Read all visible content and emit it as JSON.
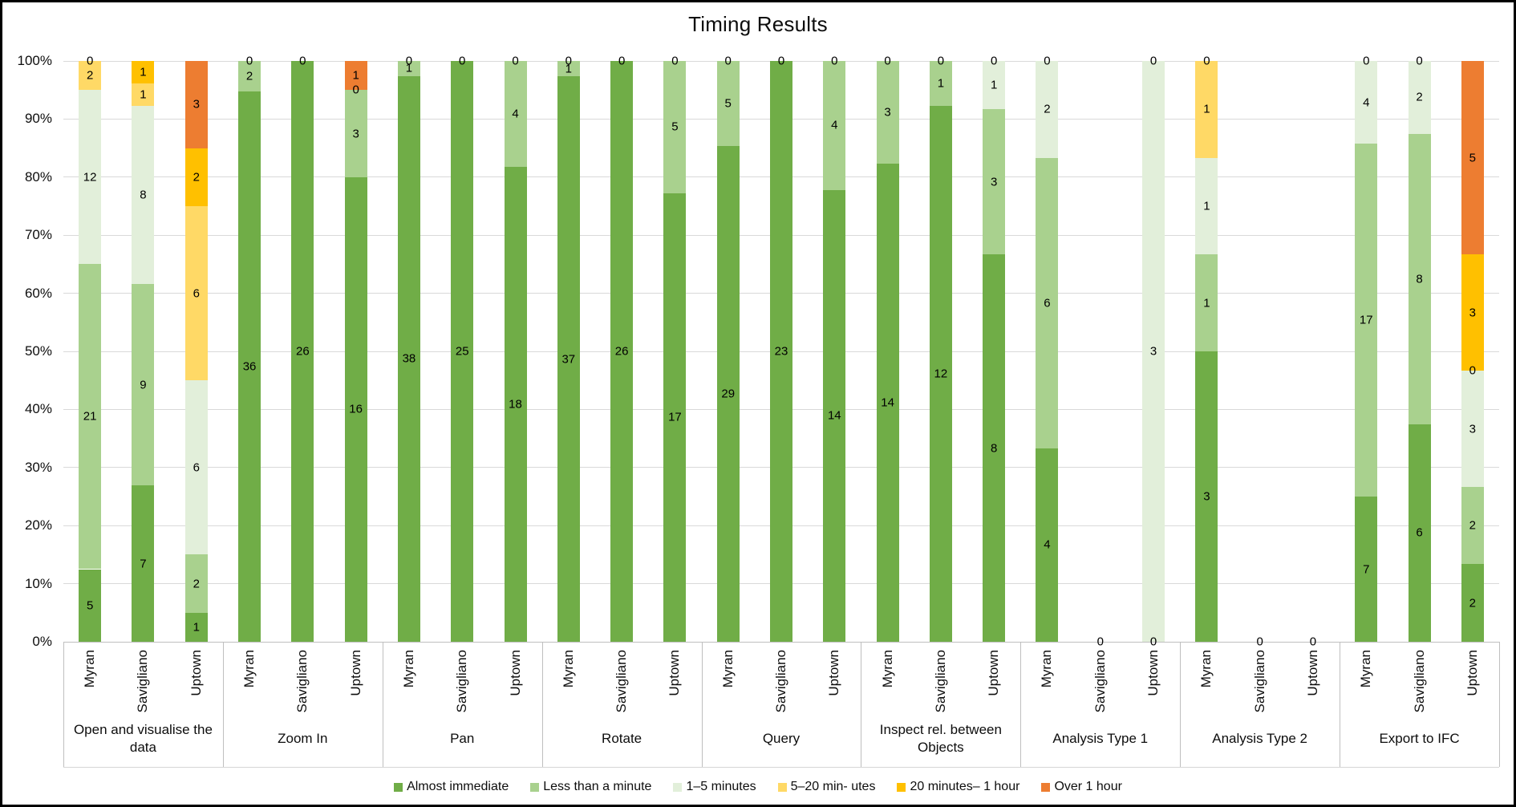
{
  "title": "Timing Results",
  "chart_data": {
    "type": "bar",
    "stacked": true,
    "percent_stacked": true,
    "title": "Timing Results",
    "xlabel": "",
    "ylabel": "",
    "ylim": [
      0,
      100
    ],
    "grid": true,
    "legend_position": "bottom",
    "y_ticks": [
      "0%",
      "10%",
      "20%",
      "30%",
      "40%",
      "50%",
      "60%",
      "70%",
      "80%",
      "90%",
      "100%"
    ],
    "series": [
      {
        "name": "Almost immediate",
        "color": "#70AD47"
      },
      {
        "name": "Less than a minute",
        "color": "#A9D18E"
      },
      {
        "name": "1–5 minutes",
        "color": "#E2EFDA"
      },
      {
        "name": "5–20 min- utes",
        "color": "#FFD966"
      },
      {
        "name": "20 minutes– 1 hour",
        "color": "#FFC000"
      },
      {
        "name": "Over 1 hour",
        "color": "#ED7D31"
      }
    ],
    "sub_categories": [
      "Myran",
      "Savigliano",
      "Uptown"
    ],
    "groups": [
      {
        "label": "Open and visualise the data",
        "bars": [
          {
            "label": "Myran",
            "values": [
              5,
              21,
              12,
              2,
              0,
              0
            ],
            "zero_labels_at_pct": [
              100
            ]
          },
          {
            "label": "Savigliano",
            "values": [
              7,
              9,
              8,
              1,
              1,
              0
            ],
            "zero_labels_at_pct": []
          },
          {
            "label": "Uptown",
            "values": [
              1,
              2,
              6,
              6,
              2,
              3
            ],
            "zero_labels_at_pct": []
          }
        ]
      },
      {
        "label": "Zoom In",
        "bars": [
          {
            "label": "Myran",
            "values": [
              36,
              2,
              0,
              0,
              0,
              0
            ],
            "zero_labels_at_pct": [
              100
            ]
          },
          {
            "label": "Savigliano",
            "values": [
              26,
              0,
              0,
              0,
              0,
              0
            ],
            "zero_labels_at_pct": [
              100
            ]
          },
          {
            "label": "Uptown",
            "values": [
              16,
              3,
              0,
              0,
              0,
              1
            ],
            "zero_labels_at_pct": [
              95
            ]
          }
        ]
      },
      {
        "label": "Pan",
        "bars": [
          {
            "label": "Myran",
            "values": [
              38,
              1,
              0,
              0,
              0,
              0
            ],
            "zero_labels_at_pct": [
              100
            ]
          },
          {
            "label": "Savigliano",
            "values": [
              25,
              0,
              0,
              0,
              0,
              0
            ],
            "zero_labels_at_pct": [
              100
            ]
          },
          {
            "label": "Uptown",
            "values": [
              18,
              4,
              0,
              0,
              0,
              0
            ],
            "zero_labels_at_pct": [
              100
            ]
          }
        ]
      },
      {
        "label": "Rotate",
        "bars": [
          {
            "label": "Myran",
            "values": [
              37,
              1,
              0,
              0,
              0,
              0
            ],
            "zero_labels_at_pct": [
              100
            ]
          },
          {
            "label": "Savigliano",
            "values": [
              26,
              0,
              0,
              0,
              0,
              0
            ],
            "zero_labels_at_pct": [
              100
            ]
          },
          {
            "label": "Uptown",
            "values": [
              17,
              5,
              0,
              0,
              0,
              0
            ],
            "zero_labels_at_pct": [
              100
            ]
          }
        ]
      },
      {
        "label": "Query",
        "bars": [
          {
            "label": "Myran",
            "values": [
              29,
              5,
              0,
              0,
              0,
              0
            ],
            "zero_labels_at_pct": [
              100
            ]
          },
          {
            "label": "Savigliano",
            "values": [
              23,
              0,
              0,
              0,
              0,
              0
            ],
            "zero_labels_at_pct": [
              100
            ]
          },
          {
            "label": "Uptown",
            "values": [
              14,
              4,
              0,
              0,
              0,
              0
            ],
            "zero_labels_at_pct": [
              100
            ]
          }
        ]
      },
      {
        "label": "Inspect rel. between Objects",
        "bars": [
          {
            "label": "Myran",
            "values": [
              14,
              3,
              0,
              0,
              0,
              0
            ],
            "zero_labels_at_pct": [
              100
            ]
          },
          {
            "label": "Savigliano",
            "values": [
              12,
              1,
              0,
              0,
              0,
              0
            ],
            "zero_labels_at_pct": [
              100
            ]
          },
          {
            "label": "Uptown",
            "values": [
              8,
              3,
              1,
              0,
              0,
              0
            ],
            "zero_labels_at_pct": [
              100
            ]
          }
        ]
      },
      {
        "label": "Analysis Type 1",
        "bars": [
          {
            "label": "Myran",
            "values": [
              4,
              6,
              2,
              0,
              0,
              0
            ],
            "zero_labels_at_pct": [
              100
            ]
          },
          {
            "label": "Savigliano",
            "values": [
              0,
              0,
              0,
              0,
              0,
              0
            ],
            "zero_labels_at_pct": [
              0
            ]
          },
          {
            "label": "Uptown",
            "values": [
              0,
              0,
              3,
              0,
              0,
              0
            ],
            "zero_labels_at_pct": [
              100,
              0
            ]
          }
        ]
      },
      {
        "label": "Analysis Type 2",
        "bars": [
          {
            "label": "Myran",
            "values": [
              3,
              1,
              1,
              1,
              0,
              0
            ],
            "zero_labels_at_pct": [
              100
            ]
          },
          {
            "label": "Savigliano",
            "values": [
              0,
              0,
              0,
              0,
              0,
              0
            ],
            "zero_labels_at_pct": [
              0
            ]
          },
          {
            "label": "Uptown",
            "values": [
              0,
              0,
              0,
              0,
              0,
              0
            ],
            "zero_labels_at_pct": [
              0
            ]
          }
        ]
      },
      {
        "label": "Export to IFC",
        "bars": [
          {
            "label": "Myran",
            "values": [
              7,
              17,
              4,
              0,
              0,
              0
            ],
            "zero_labels_at_pct": [
              100
            ]
          },
          {
            "label": "Savigliano",
            "values": [
              6,
              8,
              2,
              0,
              0,
              0
            ],
            "zero_labels_at_pct": [
              100
            ]
          },
          {
            "label": "Uptown",
            "values": [
              2,
              2,
              3,
              0,
              3,
              5
            ],
            "zero_labels_at_pct": [
              46.7
            ]
          }
        ]
      }
    ]
  }
}
